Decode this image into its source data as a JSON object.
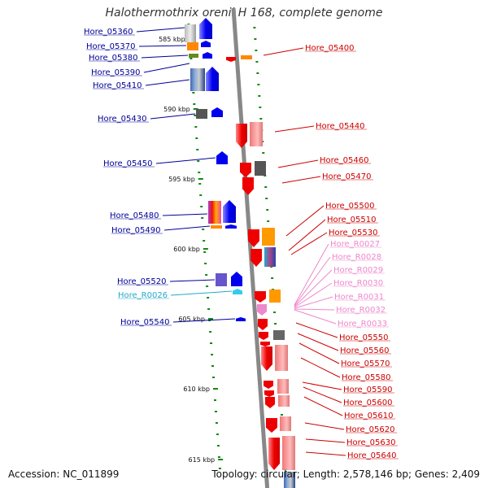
{
  "title": "Halothermothrix orenii H 168, complete genome",
  "footer": {
    "accession": "Accession: NC_011899",
    "topology": "Topology: circular; Length: 2,578,146 bp; Genes: 2,409"
  },
  "scale_labels": [
    "585 kbp",
    "590 kbp",
    "595 kbp",
    "600 kbp",
    "605 kbp",
    "610 kbp",
    "615 kbp"
  ],
  "left_labels": [
    "Hore_05360",
    "Hore_05370",
    "Hore_05380",
    "Hore_05390",
    "Hore_05410",
    "Hore_05430",
    "Hore_05450",
    "Hore_05480",
    "Hore_05490",
    "Hore_05520",
    "Hore_R0026",
    "Hore_05540"
  ],
  "right_labels": [
    "Hore_05400",
    "Hore_05440",
    "Hore_05460",
    "Hore_05470",
    "Hore_05500",
    "Hore_05510",
    "Hore_05530",
    "Hore_R0027",
    "Hore_R0028",
    "Hore_R0029",
    "Hore_R0030",
    "Hore_R0031",
    "Hore_R0032",
    "Hore_R0033",
    "Hore_05550",
    "Hore_05560",
    "Hore_05570",
    "Hore_05580",
    "Hore_05590",
    "Hore_05600",
    "Hore_05610",
    "Hore_05620",
    "Hore_05630",
    "Hore_05640"
  ],
  "colors": {
    "forward_strand": "#0000ee",
    "reverse_strand": "#ee0000",
    "trna": "#33ccee",
    "rrna": "#ee88cc",
    "backbone": "#888888",
    "tick": "#118811"
  }
}
